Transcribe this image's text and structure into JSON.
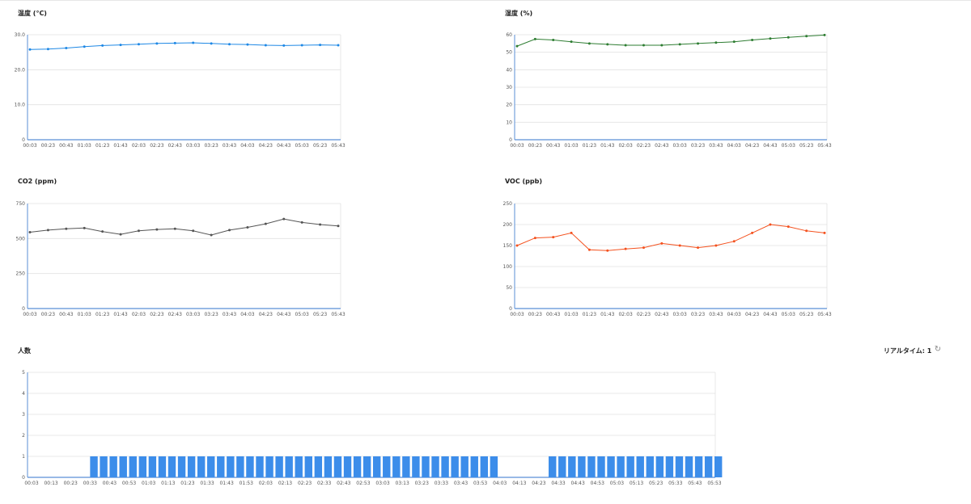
{
  "charts_text": {
    "temperature_title": "温度 (°C)",
    "humidity_title": "湿度 (%)",
    "co2_title": "CO2 (ppm)",
    "voc_title": "VOC (ppb)",
    "people_title": "人数"
  },
  "realtime": {
    "label": "リアルタイム: 1",
    "refresh_icon": "refresh-icon"
  },
  "colors": {
    "temperature": "#1e88e5",
    "humidity": "#2e7d32",
    "co2": "#555555",
    "voc": "#f4511e",
    "people": "#3c8dea"
  },
  "chart_data": [
    {
      "type": "line",
      "title": "温度 (°C)",
      "x": [
        "00:03",
        "00:23",
        "00:43",
        "01:03",
        "01:23",
        "01:43",
        "02:03",
        "02:23",
        "02:43",
        "03:03",
        "03:23",
        "03:43",
        "04:03",
        "04:23",
        "04:43",
        "05:03",
        "05:23",
        "05:43"
      ],
      "values": [
        25.8,
        25.9,
        26.2,
        26.6,
        26.9,
        27.1,
        27.3,
        27.5,
        27.6,
        27.7,
        27.5,
        27.3,
        27.2,
        27.0,
        26.9,
        27.0,
        27.1,
        27.0
      ],
      "yticks": [
        "0",
        "10.0",
        "20.0",
        "30.0"
      ],
      "ylim": [
        0,
        30
      ]
    },
    {
      "type": "line",
      "title": "湿度 (%)",
      "x": [
        "00:03",
        "00:23",
        "00:43",
        "01:03",
        "01:23",
        "01:43",
        "02:03",
        "02:23",
        "02:43",
        "03:03",
        "03:23",
        "03:43",
        "04:03",
        "04:23",
        "04:43",
        "05:03",
        "05:23",
        "05:43"
      ],
      "values": [
        53.5,
        57.5,
        57,
        56,
        55,
        54.5,
        54,
        54,
        54,
        54.5,
        55,
        55.5,
        56,
        57,
        57.8,
        58.5,
        59.2,
        59.8
      ],
      "yticks": [
        "0",
        "10",
        "20",
        "30",
        "40",
        "50",
        "60"
      ],
      "ylim": [
        0,
        60
      ]
    },
    {
      "type": "line",
      "title": "CO2 (ppm)",
      "x": [
        "00:03",
        "00:23",
        "00:43",
        "01:03",
        "01:23",
        "01:43",
        "02:03",
        "02:23",
        "02:43",
        "03:03",
        "03:23",
        "03:43",
        "04:03",
        "04:23",
        "04:43",
        "05:03",
        "05:23",
        "05:43"
      ],
      "values": [
        545,
        560,
        570,
        575,
        550,
        530,
        555,
        565,
        570,
        555,
        525,
        560,
        580,
        605,
        640,
        615,
        600,
        590
      ],
      "yticks": [
        "0",
        "250",
        "500",
        "750"
      ],
      "ylim": [
        0,
        750
      ]
    },
    {
      "type": "line",
      "title": "VOC (ppb)",
      "x": [
        "00:03",
        "00:23",
        "00:43",
        "01:03",
        "01:23",
        "01:43",
        "02:03",
        "02:23",
        "02:43",
        "03:03",
        "03:23",
        "03:43",
        "04:03",
        "04:23",
        "04:43",
        "05:03",
        "05:23",
        "05:43"
      ],
      "values": [
        150,
        168,
        170,
        180,
        140,
        138,
        142,
        145,
        155,
        150,
        145,
        150,
        160,
        180,
        200,
        195,
        185,
        180
      ],
      "yticks": [
        "0",
        "50",
        "100",
        "150",
        "200",
        "250"
      ],
      "ylim": [
        0,
        250
      ]
    },
    {
      "type": "bar",
      "title": "人数",
      "categories": [
        "00:03",
        "00:08",
        "00:13",
        "00:18",
        "00:23",
        "00:28",
        "00:33",
        "00:38",
        "00:43",
        "00:48",
        "00:53",
        "00:58",
        "01:03",
        "01:08",
        "01:13",
        "01:18",
        "01:23",
        "01:28",
        "01:33",
        "01:38",
        "01:43",
        "01:48",
        "01:53",
        "01:58",
        "02:03",
        "02:08",
        "02:13",
        "02:18",
        "02:23",
        "02:28",
        "02:33",
        "02:38",
        "02:43",
        "02:48",
        "02:53",
        "02:58",
        "03:03",
        "03:08",
        "03:13",
        "03:18",
        "03:23",
        "03:28",
        "03:33",
        "03:38",
        "03:43",
        "03:48",
        "03:53",
        "03:58",
        "04:03",
        "04:08",
        "04:13",
        "04:18",
        "04:23",
        "04:28",
        "04:33",
        "04:38",
        "04:43",
        "04:48",
        "04:53",
        "04:58",
        "05:03",
        "05:08",
        "05:13",
        "05:18",
        "05:23",
        "05:28",
        "05:33",
        "05:38",
        "05:43",
        "05:48",
        "05:53"
      ],
      "values": [
        0,
        0,
        0,
        0,
        0,
        0,
        1,
        1,
        1,
        1,
        1,
        1,
        1,
        1,
        1,
        1,
        1,
        1,
        1,
        1,
        1,
        1,
        1,
        1,
        1,
        1,
        1,
        1,
        1,
        1,
        1,
        1,
        1,
        1,
        1,
        1,
        1,
        1,
        1,
        1,
        1,
        1,
        1,
        1,
        1,
        1,
        1,
        1,
        0,
        0,
        0,
        0,
        0,
        1,
        1,
        1,
        1,
        1,
        1,
        1,
        1,
        1,
        1,
        1,
        1,
        1,
        1,
        1,
        1,
        1,
        1
      ],
      "xticks": [
        "00:03",
        "00:13",
        "00:23",
        "00:33",
        "00:43",
        "00:53",
        "01:03",
        "01:13",
        "01:23",
        "01:33",
        "01:43",
        "01:53",
        "02:03",
        "02:13",
        "02:23",
        "02:33",
        "02:43",
        "02:53",
        "03:03",
        "03:13",
        "03:23",
        "03:33",
        "03:43",
        "03:53",
        "04:03",
        "04:13",
        "04:23",
        "04:33",
        "04:43",
        "04:53",
        "05:03",
        "05:13",
        "05:23",
        "05:33",
        "05:43",
        "05:53"
      ],
      "yticks": [
        "0",
        "1",
        "2",
        "3",
        "4",
        "5"
      ],
      "ylim": [
        0,
        5
      ]
    }
  ]
}
